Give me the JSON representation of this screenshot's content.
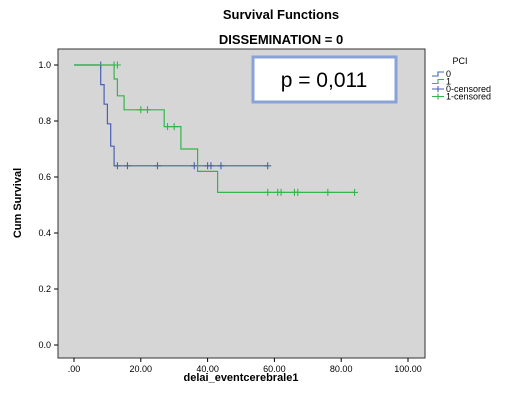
{
  "chart_data": {
    "type": "line",
    "title": "Survival Functions",
    "subtitle": "DISSEMINATION = 0",
    "xlabel": "delai_eventcerebrale1",
    "ylabel": "Cum Survival",
    "xlim": [
      0,
      100
    ],
    "ylim": [
      0,
      1
    ],
    "x_ticks": [
      ".00",
      "20.00",
      "40.00",
      "60.00",
      "80.00",
      "100.00"
    ],
    "y_ticks": [
      "0.0",
      "0.2",
      "0.4",
      "0.6",
      "0.8",
      "1.0"
    ],
    "grid": false,
    "legend": {
      "title": "PCI",
      "position": "top-right",
      "entries": [
        "0",
        "1",
        "0-censored",
        "1-censored"
      ]
    },
    "annotation": "p = 0,011",
    "series": [
      {
        "name": "0",
        "color": "#4a5fb5",
        "steps": [
          [
            0,
            1.0
          ],
          [
            8,
            1.0
          ],
          [
            8,
            0.93
          ],
          [
            9,
            0.93
          ],
          [
            9,
            0.86
          ],
          [
            10,
            0.86
          ],
          [
            10,
            0.79
          ],
          [
            11,
            0.79
          ],
          [
            11,
            0.71
          ],
          [
            12,
            0.71
          ],
          [
            12,
            0.64
          ],
          [
            58,
            0.64
          ]
        ],
        "censored": [
          [
            8,
            1.0
          ],
          [
            13,
            0.64
          ],
          [
            16,
            0.64
          ],
          [
            25,
            0.64
          ],
          [
            36,
            0.64
          ],
          [
            40,
            0.64
          ],
          [
            41,
            0.64
          ],
          [
            44,
            0.64
          ],
          [
            58,
            0.64
          ]
        ]
      },
      {
        "name": "1",
        "color": "#33b54a",
        "steps": [
          [
            0,
            1.0
          ],
          [
            12,
            1.0
          ],
          [
            12,
            0.95
          ],
          [
            13,
            0.95
          ],
          [
            13,
            0.89
          ],
          [
            15,
            0.89
          ],
          [
            15,
            0.84
          ],
          [
            27,
            0.84
          ],
          [
            27,
            0.78
          ],
          [
            32,
            0.78
          ],
          [
            32,
            0.7
          ],
          [
            37,
            0.7
          ],
          [
            37,
            0.62
          ],
          [
            40,
            0.62
          ],
          [
            40,
            0.62
          ],
          [
            43,
            0.62
          ],
          [
            43,
            0.545
          ],
          [
            84,
            0.545
          ]
        ],
        "censored": [
          [
            12,
            1.0
          ],
          [
            13,
            1.0
          ],
          [
            20,
            0.84
          ],
          [
            22,
            0.84
          ],
          [
            28,
            0.78
          ],
          [
            30,
            0.78
          ],
          [
            58,
            0.545
          ],
          [
            61,
            0.545
          ],
          [
            62,
            0.545
          ],
          [
            66,
            0.545
          ],
          [
            67,
            0.545
          ],
          [
            76,
            0.545
          ],
          [
            84,
            0.545
          ]
        ]
      }
    ]
  }
}
